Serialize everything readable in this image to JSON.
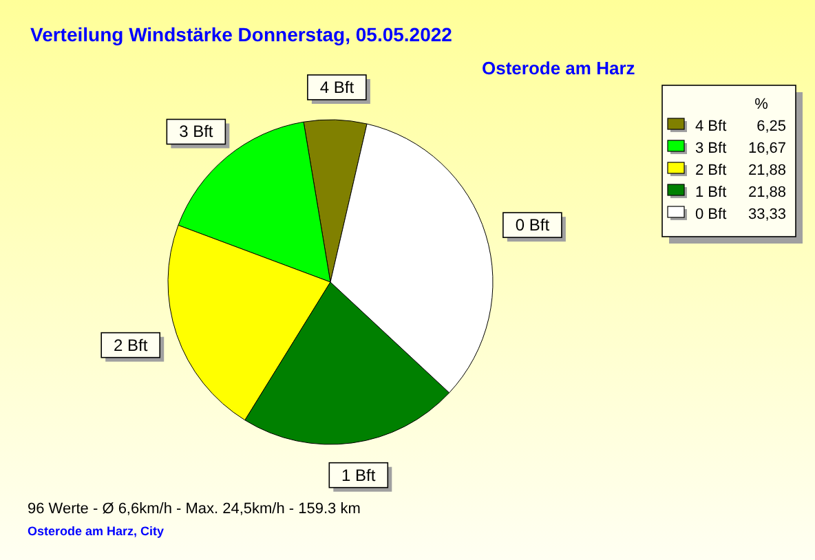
{
  "chart_data": {
    "type": "pie",
    "title": "Verteilung Windstärke  Donnerstag, 05.05.2022",
    "subtitle": "Osterode am Harz",
    "categories": [
      "4 Bft",
      "3 Bft",
      "2 Bft",
      "1 Bft",
      "0 Bft"
    ],
    "values": [
      6.25,
      16.67,
      21.88,
      21.88,
      33.33
    ],
    "value_labels": [
      "6,25",
      "16,67",
      "21,88",
      "21,88",
      "33,33"
    ],
    "colors": [
      "#808000",
      "#00ff00",
      "#ffff00",
      "#008000",
      "#ffffff"
    ],
    "legend": "top right",
    "legend_title": "%",
    "annotations": [
      "96 Werte   -   Ø 6,6km/h  -  Max. 24,5km/h   -   159.3 km",
      "Osterode am Harz, City"
    ]
  }
}
